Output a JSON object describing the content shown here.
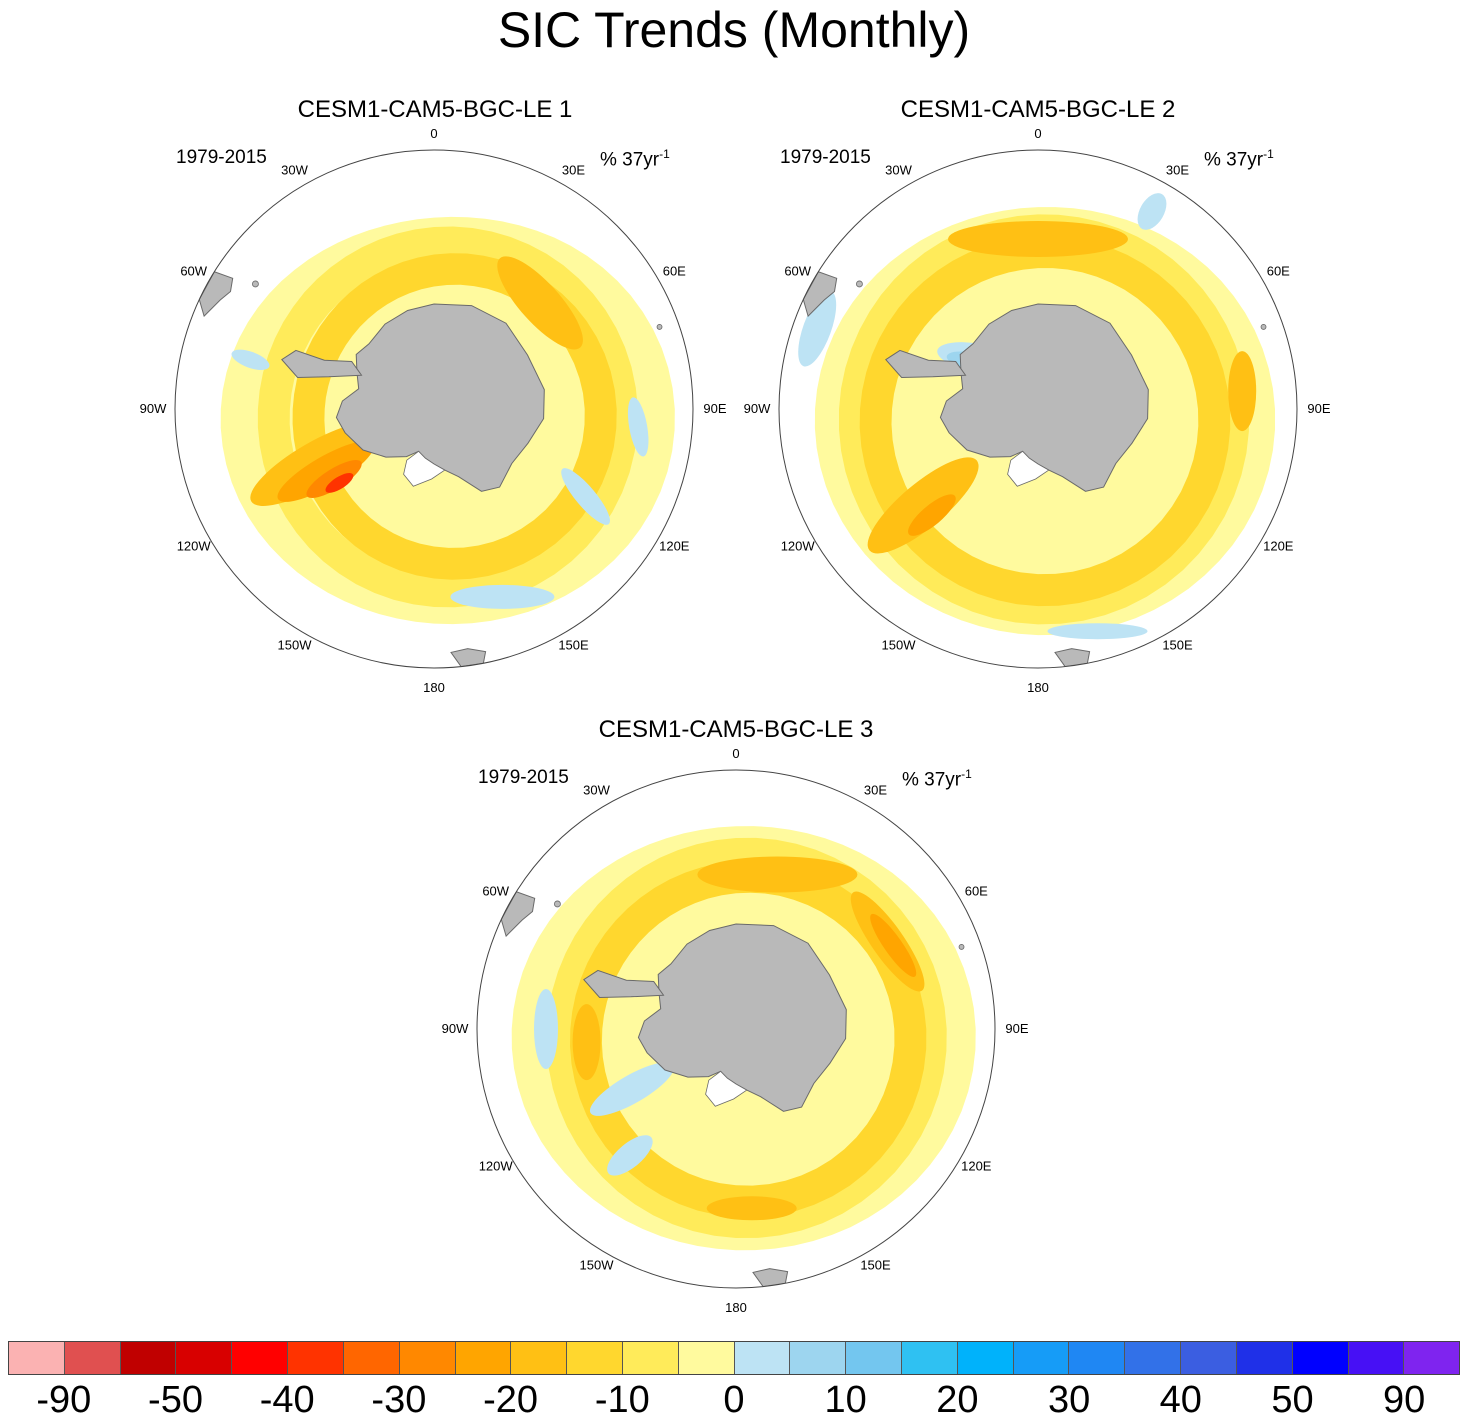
{
  "figure": {
    "title": "SIC Trends (Monthly)"
  },
  "panels": [
    {
      "title": "CESM1-CAM5-BGC-LE 1",
      "period": "1979-2015",
      "units_main": "% 37yr",
      "units_exp": "-1"
    },
    {
      "title": "CESM1-CAM5-BGC-LE 2",
      "period": "1979-2015",
      "units_main": "% 37yr",
      "units_exp": "-1"
    },
    {
      "title": "CESM1-CAM5-BGC-LE 3",
      "period": "1979-2015",
      "units_main": "% 37yr",
      "units_exp": "-1"
    }
  ],
  "longitude_labels": [
    "0",
    "30E",
    "60E",
    "90E",
    "120E",
    "150E",
    "180",
    "150W",
    "120W",
    "90W",
    "60W",
    "30W"
  ],
  "colors": {
    "land": "#b9b9b9",
    "coast": "#6a6a6a",
    "ice_shelf": "#ffffff",
    "frame": "#444444"
  },
  "colorbar": {
    "colors": [
      "#fbb2b2",
      "#e05050",
      "#c00000",
      "#d80000",
      "#ff0000",
      "#ff3300",
      "#ff6600",
      "#ff8800",
      "#ffa500",
      "#ffc014",
      "#ffd72e",
      "#ffeb5a",
      "#fffa9e",
      "#bde3f4",
      "#9dd5ef",
      "#73c6ef",
      "#2fc1f2",
      "#00b2fb",
      "#169cf7",
      "#1f87f3",
      "#3271e8",
      "#3b5ee1",
      "#1f30e8",
      "#0000ff",
      "#4710f5",
      "#7f24ef"
    ],
    "labels": [
      "-90",
      "-50",
      "-40",
      "-30",
      "-20",
      "-10",
      "0",
      "10",
      "20",
      "30",
      "40",
      "50",
      "90"
    ]
  }
}
